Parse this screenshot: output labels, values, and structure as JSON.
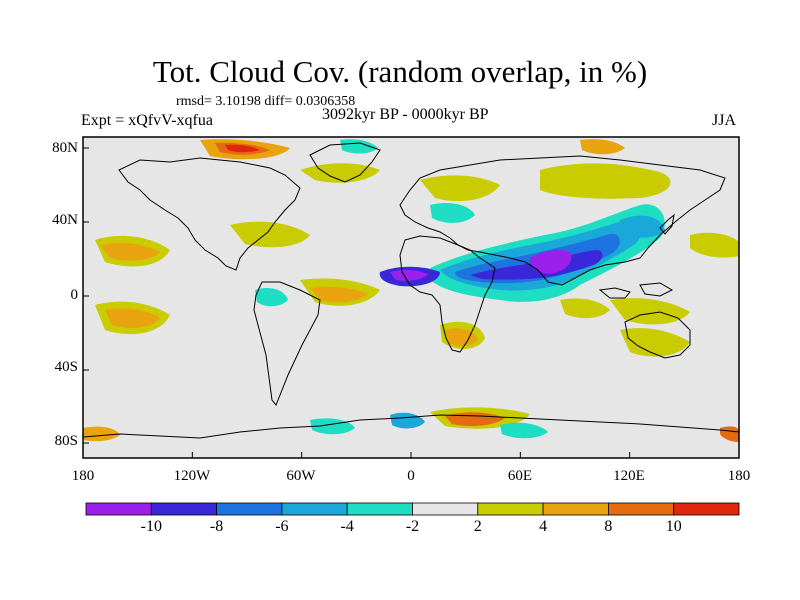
{
  "title": "Tot. Cloud Cov. (random overlap, in %)",
  "subtitle": "rmsd= 3.10198 diff= 0.0306358",
  "left_label": "Expt = xQfvV-xqfua",
  "center_label": "3092kyr BP - 0000kyr BP",
  "right_label": "JJA",
  "map": {
    "lon_range": [
      -180,
      180
    ],
    "lat_range": [
      -90,
      90
    ],
    "x_ticks": [
      "180",
      "120W",
      "60W",
      "0",
      "60E",
      "120E",
      "180"
    ],
    "y_ticks": [
      "80N",
      "40N",
      "0",
      "40S",
      "80S"
    ]
  },
  "colorbar": {
    "colors": [
      "#9b20ec",
      "#3a27d9",
      "#1f73e0",
      "#1aa7d9",
      "#1ddec2",
      "#e6e6e6",
      "#c9cc00",
      "#e8a30f",
      "#e46b12",
      "#e1260b"
    ],
    "labels": [
      "-10",
      "-8",
      "-6",
      "-4",
      "-2",
      "2",
      "4",
      "8",
      "10"
    ]
  },
  "colors": {
    "land_fill": "#e6e6e6",
    "coast": "#000000"
  }
}
